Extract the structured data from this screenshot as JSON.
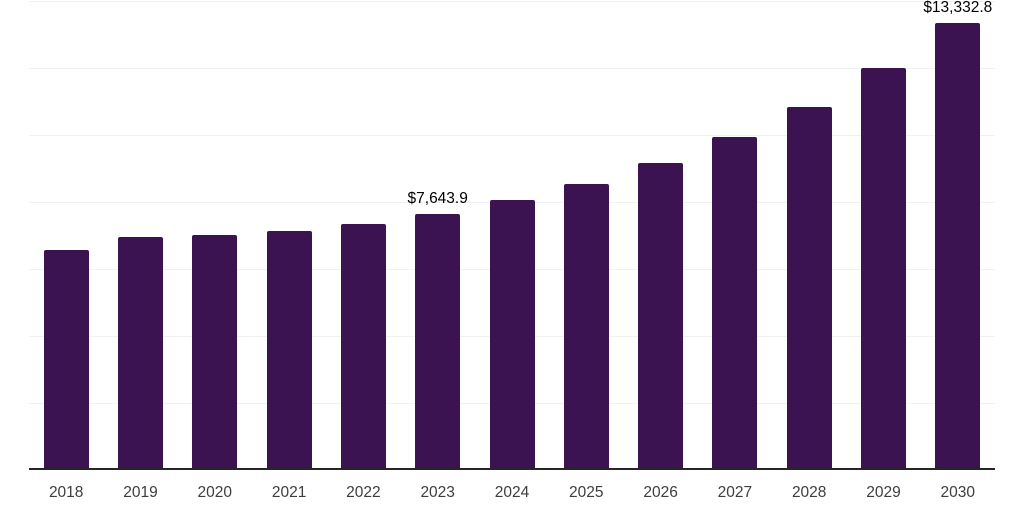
{
  "page": {
    "background": "#ffffff"
  },
  "chart_data": {
    "type": "bar",
    "title": "",
    "xlabel": "",
    "ylabel": "",
    "categories": [
      "2018",
      "2019",
      "2020",
      "2021",
      "2022",
      "2023",
      "2024",
      "2025",
      "2026",
      "2027",
      "2028",
      "2029",
      "2030"
    ],
    "values": [
      6560,
      6960,
      7010,
      7130,
      7330,
      7643.9,
      8060,
      8540,
      9160,
      9930,
      10840,
      11990,
      13332.8
    ],
    "value_labels": [
      {
        "index": 5,
        "category": "2023",
        "text": "$7,643.9"
      },
      {
        "index": 12,
        "category": "2030",
        "text": "$13,332.8"
      }
    ],
    "ylim": [
      0,
      14000
    ],
    "grid_step": 2000,
    "grid": true,
    "legend": false,
    "bar_color": "#3A1350",
    "grid_color": "#f2f2f2",
    "axis_color": "#262626",
    "tick_color": "#3d3d3d",
    "value_label_color": "#000000"
  }
}
